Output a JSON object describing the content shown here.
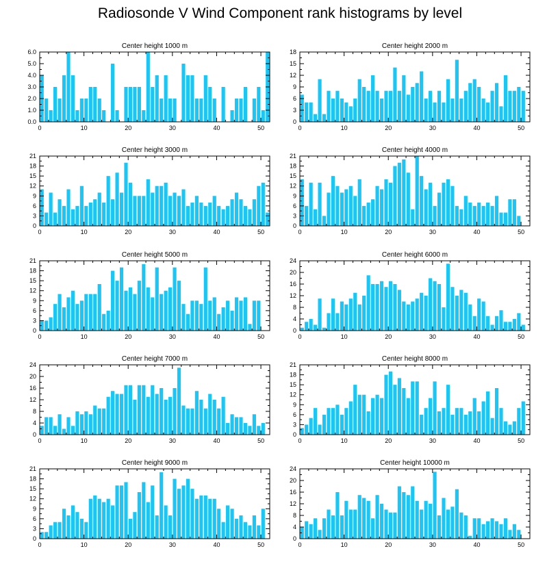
{
  "title": "Radiosonde V Wind Component rank histograms by level",
  "colors": {
    "bar": "#19c6f5",
    "axis": "#000000"
  },
  "chart_data": [
    {
      "type": "bar",
      "title": "Center height 1000 m",
      "ylim": [
        0,
        6
      ],
      "yticks": [
        "0.0",
        "1.0",
        "2.0",
        "3.0",
        "4.0",
        "5.0",
        "6.0"
      ],
      "xticks": [
        "0",
        "10",
        "20",
        "30",
        "40",
        "50"
      ],
      "x": [
        0,
        1,
        2,
        3,
        4,
        5,
        6,
        7,
        8,
        9,
        10,
        11,
        12,
        13,
        14,
        15,
        16,
        17,
        18,
        19,
        20,
        21,
        22,
        23,
        24,
        25,
        26,
        27,
        28,
        29,
        30,
        31,
        32,
        33,
        34,
        35,
        36,
        37,
        38,
        39,
        40,
        41,
        42,
        43,
        44,
        45,
        46,
        47,
        48,
        49,
        50,
        51
      ],
      "values": [
        4,
        2,
        1,
        3,
        2,
        4,
        6,
        4,
        1,
        2,
        2,
        3,
        3,
        2,
        1,
        0,
        5,
        1,
        0,
        3,
        3,
        3,
        3,
        1,
        6,
        3,
        4,
        2,
        4,
        2,
        2,
        0,
        5,
        4,
        4,
        2,
        2,
        4,
        3,
        2,
        0,
        3,
        0,
        1,
        2,
        2,
        3,
        0,
        2,
        3,
        1,
        6
      ]
    },
    {
      "type": "bar",
      "title": "Center height 2000 m",
      "ylim": [
        0,
        18
      ],
      "yticks": [
        "0",
        "3",
        "6",
        "9",
        "12",
        "15",
        "18"
      ],
      "xticks": [
        "0",
        "10",
        "20",
        "30",
        "40",
        "50"
      ],
      "x": [
        0,
        1,
        2,
        3,
        4,
        5,
        6,
        7,
        8,
        9,
        10,
        11,
        12,
        13,
        14,
        15,
        16,
        17,
        18,
        19,
        20,
        21,
        22,
        23,
        24,
        25,
        26,
        27,
        28,
        29,
        30,
        31,
        32,
        33,
        34,
        35,
        36,
        37,
        38,
        39,
        40,
        41,
        42,
        43,
        44,
        45,
        46,
        47,
        48,
        49,
        50,
        51
      ],
      "values": [
        7,
        5,
        5,
        2,
        11,
        2,
        8,
        6,
        8,
        6,
        5,
        4,
        6,
        11,
        9,
        8,
        12,
        8,
        6,
        8,
        8,
        14,
        8,
        12,
        7,
        9,
        10,
        13,
        6,
        8,
        5,
        8,
        5,
        11,
        6,
        16,
        6,
        8,
        10,
        11,
        9,
        6,
        5,
        8,
        10,
        4,
        12,
        8,
        8,
        9,
        8,
        0
      ]
    },
    {
      "type": "bar",
      "title": "Center height 3000 m",
      "ylim": [
        0,
        21
      ],
      "yticks": [
        "0",
        "3",
        "6",
        "9",
        "12",
        "15",
        "18",
        "21"
      ],
      "xticks": [
        "0",
        "10",
        "20",
        "30",
        "40",
        "50"
      ],
      "x": [
        0,
        1,
        2,
        3,
        4,
        5,
        6,
        7,
        8,
        9,
        10,
        11,
        12,
        13,
        14,
        15,
        16,
        17,
        18,
        19,
        20,
        21,
        22,
        23,
        24,
        25,
        26,
        27,
        28,
        29,
        30,
        31,
        32,
        33,
        34,
        35,
        36,
        37,
        38,
        39,
        40,
        41,
        42,
        43,
        44,
        45,
        46,
        47,
        48,
        49,
        50,
        51
      ],
      "values": [
        11,
        4,
        10,
        4,
        8,
        6,
        11,
        5,
        6,
        12,
        6,
        7,
        8,
        10,
        7,
        15,
        8,
        16,
        10,
        19,
        13,
        9,
        9,
        9,
        14,
        10,
        12,
        12,
        13,
        9,
        10,
        9,
        11,
        6,
        7,
        9,
        7,
        6,
        7,
        9,
        6,
        5,
        6,
        8,
        10,
        8,
        6,
        5,
        8,
        12,
        13,
        4
      ]
    },
    {
      "type": "bar",
      "title": "Center height 4000 m",
      "ylim": [
        0,
        21
      ],
      "yticks": [
        "0",
        "3",
        "6",
        "9",
        "12",
        "15",
        "18",
        "21"
      ],
      "xticks": [
        "0",
        "10",
        "20",
        "30",
        "40",
        "50"
      ],
      "x": [
        0,
        1,
        2,
        3,
        4,
        5,
        6,
        7,
        8,
        9,
        10,
        11,
        12,
        13,
        14,
        15,
        16,
        17,
        18,
        19,
        20,
        21,
        22,
        23,
        24,
        25,
        26,
        27,
        28,
        29,
        30,
        31,
        32,
        33,
        34,
        35,
        36,
        37,
        38,
        39,
        40,
        41,
        42,
        43,
        44,
        45,
        46,
        47,
        48,
        49,
        50,
        51
      ],
      "values": [
        14,
        6,
        13,
        5,
        13,
        3,
        10,
        15,
        12,
        10,
        11,
        12,
        9,
        14,
        6,
        7,
        8,
        12,
        11,
        14,
        13,
        18,
        19,
        20,
        16,
        5,
        21,
        15,
        11,
        13,
        6,
        10,
        13,
        14,
        12,
        6,
        5,
        9,
        7,
        6,
        7,
        6,
        7,
        6,
        9,
        4,
        4,
        8,
        8,
        3,
        0,
        0
      ]
    },
    {
      "type": "bar",
      "title": "Center height 5000 m",
      "ylim": [
        0,
        21
      ],
      "yticks": [
        "0",
        "3",
        "6",
        "9",
        "12",
        "15",
        "18",
        "21"
      ],
      "xticks": [
        "0",
        "10",
        "20",
        "30",
        "40",
        "50"
      ],
      "x": [
        0,
        1,
        2,
        3,
        4,
        5,
        6,
        7,
        8,
        9,
        10,
        11,
        12,
        13,
        14,
        15,
        16,
        17,
        18,
        19,
        20,
        21,
        22,
        23,
        24,
        25,
        26,
        27,
        28,
        29,
        30,
        31,
        32,
        33,
        34,
        35,
        36,
        37,
        38,
        39,
        40,
        41,
        42,
        43,
        44,
        45,
        46,
        47,
        48,
        49,
        50,
        51
      ],
      "values": [
        3,
        3,
        4,
        8,
        11,
        7,
        10,
        12,
        8,
        9,
        11,
        11,
        11,
        14,
        5,
        6,
        18,
        15,
        19,
        12,
        13,
        11,
        15,
        20,
        13,
        10,
        19,
        11,
        12,
        13,
        19,
        15,
        8,
        5,
        9,
        9,
        8,
        19,
        9,
        10,
        5,
        7,
        9,
        6,
        10,
        9,
        10,
        2,
        9,
        9,
        0,
        0
      ]
    },
    {
      "type": "bar",
      "title": "Center height 6000 m",
      "ylim": [
        0,
        24
      ],
      "yticks": [
        "0",
        "4",
        "8",
        "12",
        "16",
        "20",
        "24"
      ],
      "xticks": [
        "0",
        "10",
        "20",
        "30",
        "40",
        "50"
      ],
      "x": [
        0,
        1,
        2,
        3,
        4,
        5,
        6,
        7,
        8,
        9,
        10,
        11,
        12,
        13,
        14,
        15,
        16,
        17,
        18,
        19,
        20,
        21,
        22,
        23,
        24,
        25,
        26,
        27,
        28,
        29,
        30,
        31,
        32,
        33,
        34,
        35,
        36,
        37,
        38,
        39,
        40,
        41,
        42,
        43,
        44,
        45,
        46,
        47,
        48,
        49,
        50,
        51
      ],
      "values": [
        1,
        3,
        4,
        2,
        11,
        1,
        6,
        11,
        6,
        10,
        9,
        11,
        13,
        9,
        12,
        19,
        16,
        16,
        17,
        15,
        17,
        16,
        14,
        10,
        9,
        10,
        11,
        13,
        12,
        18,
        17,
        16,
        8,
        23,
        15,
        12,
        14,
        13,
        9,
        5,
        11,
        10,
        5,
        2,
        5,
        7,
        3,
        3,
        4,
        6,
        2,
        0
      ]
    },
    {
      "type": "bar",
      "title": "Center height 7000 m",
      "ylim": [
        0,
        24
      ],
      "yticks": [
        "0",
        "4",
        "8",
        "12",
        "16",
        "20",
        "24"
      ],
      "xticks": [
        "0",
        "10",
        "20",
        "30",
        "40",
        "50"
      ],
      "x": [
        0,
        1,
        2,
        3,
        4,
        5,
        6,
        7,
        8,
        9,
        10,
        11,
        12,
        13,
        14,
        15,
        16,
        17,
        18,
        19,
        20,
        21,
        22,
        23,
        24,
        25,
        26,
        27,
        28,
        29,
        30,
        31,
        32,
        33,
        34,
        35,
        36,
        37,
        38,
        39,
        40,
        41,
        42,
        43,
        44,
        45,
        46,
        47,
        48,
        49,
        50,
        51
      ],
      "values": [
        3,
        6,
        6,
        3,
        7,
        2,
        6,
        3,
        8,
        7,
        8,
        7,
        10,
        9,
        9,
        13,
        15,
        14,
        14,
        17,
        17,
        12,
        17,
        17,
        13,
        17,
        14,
        16,
        12,
        13,
        16,
        23,
        10,
        9,
        9,
        15,
        12,
        9,
        14,
        12,
        9,
        13,
        4,
        7,
        6,
        6,
        4,
        3,
        7,
        3,
        4,
        0
      ]
    },
    {
      "type": "bar",
      "title": "Center height 8000 m",
      "ylim": [
        0,
        21
      ],
      "yticks": [
        "0",
        "3",
        "6",
        "9",
        "12",
        "15",
        "18",
        "21"
      ],
      "xticks": [
        "0",
        "10",
        "20",
        "30",
        "40",
        "50"
      ],
      "x": [
        0,
        1,
        2,
        3,
        4,
        5,
        6,
        7,
        8,
        9,
        10,
        11,
        12,
        13,
        14,
        15,
        16,
        17,
        18,
        19,
        20,
        21,
        22,
        23,
        24,
        25,
        26,
        27,
        28,
        29,
        30,
        31,
        32,
        33,
        34,
        35,
        36,
        37,
        38,
        39,
        40,
        41,
        42,
        43,
        44,
        45,
        46,
        47,
        48,
        49,
        50,
        51
      ],
      "values": [
        2,
        3,
        5,
        8,
        3,
        6,
        8,
        8,
        9,
        6,
        8,
        10,
        15,
        12,
        12,
        7,
        11,
        12,
        11,
        18,
        19,
        15,
        17,
        14,
        11,
        16,
        16,
        6,
        8,
        11,
        16,
        7,
        8,
        15,
        6,
        8,
        8,
        6,
        7,
        11,
        7,
        10,
        13,
        5,
        14,
        8,
        4,
        3,
        4,
        8,
        10,
        0
      ]
    },
    {
      "type": "bar",
      "title": "Center height 9000 m",
      "ylim": [
        0,
        21
      ],
      "yticks": [
        "0",
        "3",
        "6",
        "9",
        "12",
        "15",
        "18",
        "21"
      ],
      "xticks": [
        "0",
        "10",
        "20",
        "30",
        "40",
        "50"
      ],
      "x": [
        0,
        1,
        2,
        3,
        4,
        5,
        6,
        7,
        8,
        9,
        10,
        11,
        12,
        13,
        14,
        15,
        16,
        17,
        18,
        19,
        20,
        21,
        22,
        23,
        24,
        25,
        26,
        27,
        28,
        29,
        30,
        31,
        32,
        33,
        34,
        35,
        36,
        37,
        38,
        39,
        40,
        41,
        42,
        43,
        44,
        45,
        46,
        47,
        48,
        49,
        50,
        51
      ],
      "values": [
        2,
        2,
        4,
        5,
        5,
        9,
        7,
        10,
        8,
        6,
        5,
        12,
        13,
        12,
        11,
        12,
        10,
        16,
        16,
        17,
        6,
        8,
        14,
        17,
        11,
        16,
        7,
        20,
        10,
        7,
        18,
        15,
        16,
        18,
        15,
        12,
        13,
        13,
        12,
        12,
        9,
        5,
        10,
        9,
        6,
        7,
        5,
        4,
        7,
        4,
        9,
        0
      ]
    },
    {
      "type": "bar",
      "title": "Center height 10000 m",
      "ylim": [
        0,
        24
      ],
      "yticks": [
        "0",
        "4",
        "8",
        "12",
        "16",
        "20",
        "24"
      ],
      "xticks": [
        "0",
        "10",
        "20",
        "30",
        "40",
        "50"
      ],
      "x": [
        0,
        1,
        2,
        3,
        4,
        5,
        6,
        7,
        8,
        9,
        10,
        11,
        12,
        13,
        14,
        15,
        16,
        17,
        18,
        19,
        20,
        21,
        22,
        23,
        24,
        25,
        26,
        27,
        28,
        29,
        30,
        31,
        32,
        33,
        34,
        35,
        36,
        37,
        38,
        39,
        40,
        41,
        42,
        43,
        44,
        45,
        46,
        47,
        48,
        49,
        50,
        51
      ],
      "values": [
        4,
        6,
        5,
        7,
        3,
        7,
        10,
        8,
        16,
        8,
        13,
        10,
        10,
        15,
        14,
        13,
        7,
        15,
        12,
        10,
        9,
        9,
        18,
        16,
        15,
        18,
        13,
        10,
        13,
        12,
        23,
        8,
        14,
        10,
        11,
        17,
        9,
        8,
        1,
        7,
        7,
        5,
        6,
        7,
        6,
        5,
        7,
        3,
        5,
        3,
        0,
        0
      ]
    }
  ]
}
